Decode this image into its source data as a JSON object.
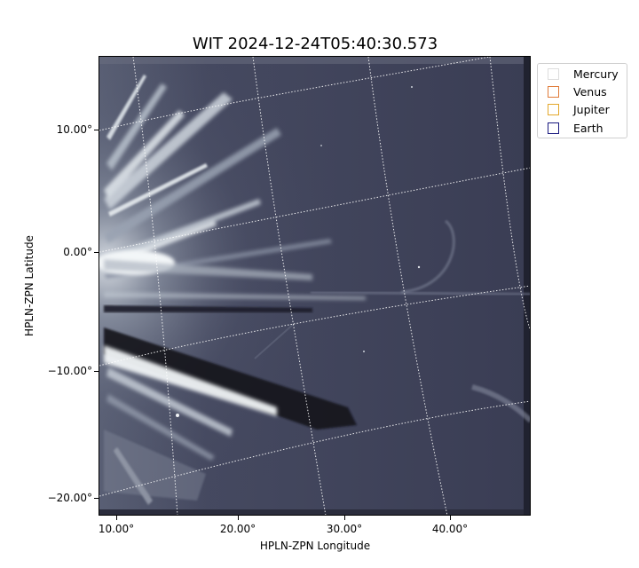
{
  "figure": {
    "title": "WIT 2024-12-24T05:40:30.573",
    "xlabel": "HPLN-ZPN Longitude",
    "ylabel": "HPLN-ZPN Latitude"
  },
  "axes": {
    "y_ticks": [
      "10.00°",
      "0.00°",
      "−10.00°",
      "−20.00°"
    ],
    "x_ticks": [
      "10.00°",
      "20.00°",
      "30.00°",
      "40.00°"
    ]
  },
  "legend": {
    "items": [
      {
        "label": "Mercury",
        "color": "#dddddd"
      },
      {
        "label": "Venus",
        "color": "#e07b39"
      },
      {
        "label": "Jupiter",
        "color": "#e3a82b"
      },
      {
        "label": "Earth",
        "color": "#1a1a80"
      }
    ]
  },
  "image": {
    "colormap": "bone",
    "background_color": "#3b3e55",
    "streamer_color": "#e8eef2"
  }
}
